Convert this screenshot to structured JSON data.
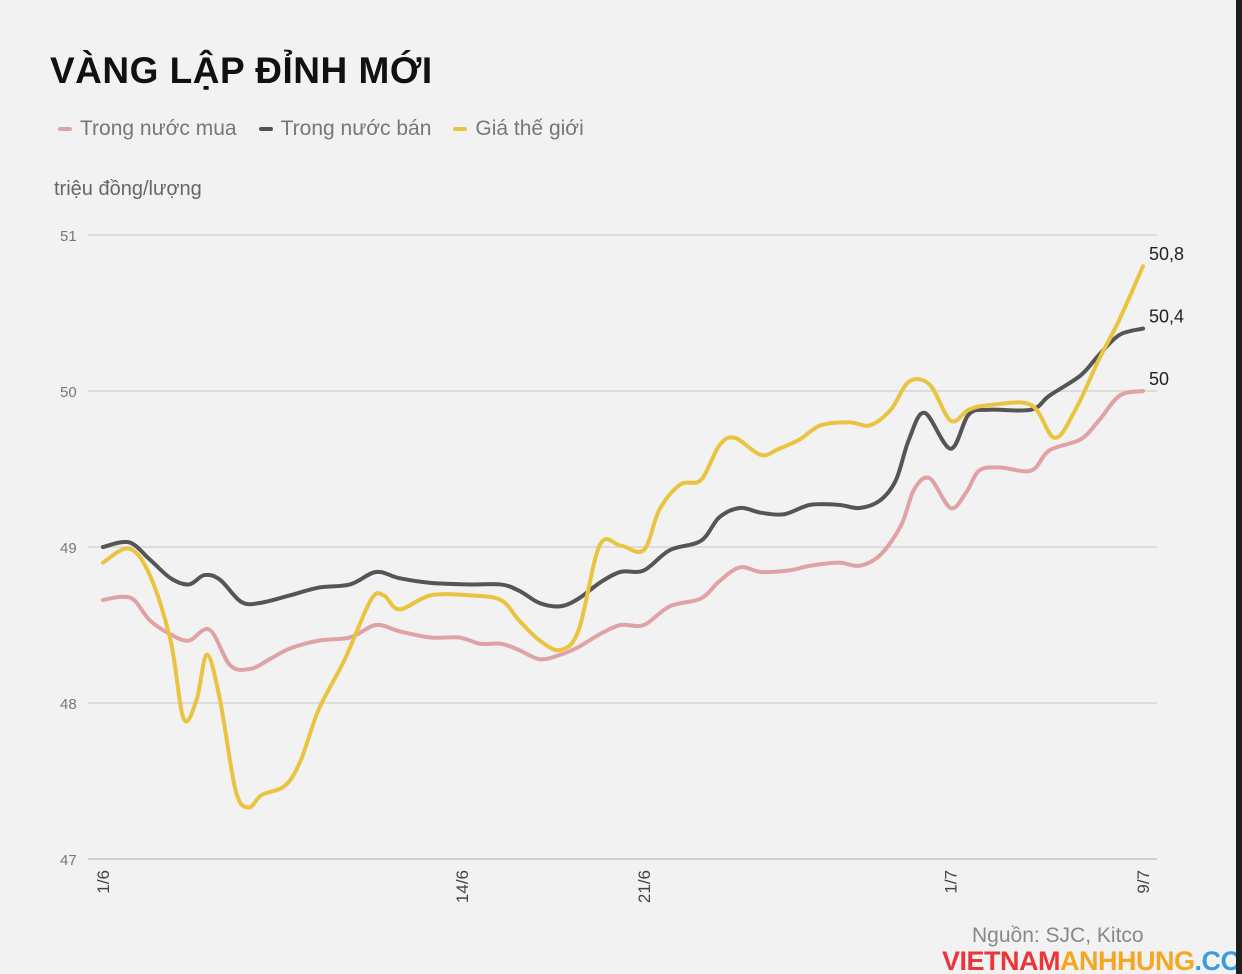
{
  "chart_data": {
    "type": "line",
    "title": "VÀNG LẬP ĐỈNH MỚI",
    "ylabel": "triệu đồng/lượng",
    "xlabel": "",
    "ylim": [
      47,
      51
    ],
    "yticks": [
      47,
      48,
      49,
      50,
      51
    ],
    "xlim": [
      0,
      40
    ],
    "xticks": [
      {
        "x": 0,
        "label": "1/6"
      },
      {
        "x": 13.8,
        "label": "14/6"
      },
      {
        "x": 20.8,
        "label": "21/6"
      },
      {
        "x": 32.6,
        "label": "1/7"
      },
      {
        "x": 40,
        "label": "9/7"
      }
    ],
    "grid": true,
    "legend_position": "top-left",
    "source": "Nguồn: SJC, Kitco",
    "series": [
      {
        "name": "Trong nước mua",
        "color": "#e0a3a5",
        "end_label": "50",
        "points": [
          [
            0,
            48.66
          ],
          [
            0.7,
            48.68
          ],
          [
            1.2,
            48.66
          ],
          [
            1.8,
            48.53
          ],
          [
            2.6,
            48.44
          ],
          [
            3.3,
            48.4
          ],
          [
            4.1,
            48.47
          ],
          [
            4.9,
            48.24
          ],
          [
            5.7,
            48.22
          ],
          [
            6.4,
            48.28
          ],
          [
            7.2,
            48.35
          ],
          [
            8.3,
            48.4
          ],
          [
            9.5,
            48.42
          ],
          [
            10.5,
            48.5
          ],
          [
            11.4,
            48.46
          ],
          [
            12.6,
            48.42
          ],
          [
            13.7,
            48.42
          ],
          [
            14.5,
            48.38
          ],
          [
            15.3,
            48.38
          ],
          [
            16.0,
            48.34
          ],
          [
            16.8,
            48.28
          ],
          [
            17.6,
            48.31
          ],
          [
            18.3,
            48.36
          ],
          [
            19.1,
            48.44
          ],
          [
            19.9,
            48.5
          ],
          [
            20.8,
            48.5
          ],
          [
            21.8,
            48.62
          ],
          [
            23.0,
            48.67
          ],
          [
            23.7,
            48.78
          ],
          [
            24.5,
            48.87
          ],
          [
            25.3,
            48.84
          ],
          [
            26.4,
            48.85
          ],
          [
            27.2,
            48.88
          ],
          [
            28.3,
            48.9
          ],
          [
            29.1,
            48.88
          ],
          [
            29.9,
            48.95
          ],
          [
            30.7,
            49.14
          ],
          [
            31.2,
            49.37
          ],
          [
            31.8,
            49.44
          ],
          [
            32.6,
            49.25
          ],
          [
            33.2,
            49.35
          ],
          [
            33.7,
            49.49
          ],
          [
            34.5,
            49.51
          ],
          [
            35.7,
            49.49
          ],
          [
            36.4,
            49.62
          ],
          [
            37.6,
            49.69
          ],
          [
            38.3,
            49.81
          ],
          [
            39.1,
            49.97
          ],
          [
            40,
            50.0
          ]
        ]
      },
      {
        "name": "Trong nước bán",
        "color": "#555555",
        "end_label": "50,4",
        "points": [
          [
            0,
            49.0
          ],
          [
            1.0,
            49.03
          ],
          [
            1.8,
            48.92
          ],
          [
            2.6,
            48.8
          ],
          [
            3.3,
            48.76
          ],
          [
            3.9,
            48.82
          ],
          [
            4.5,
            48.79
          ],
          [
            5.3,
            48.65
          ],
          [
            6.0,
            48.64
          ],
          [
            7.2,
            48.69
          ],
          [
            8.3,
            48.74
          ],
          [
            9.5,
            48.76
          ],
          [
            10.5,
            48.84
          ],
          [
            11.4,
            48.8
          ],
          [
            12.6,
            48.77
          ],
          [
            14.1,
            48.76
          ],
          [
            15.3,
            48.76
          ],
          [
            16.0,
            48.72
          ],
          [
            16.8,
            48.64
          ],
          [
            17.6,
            48.62
          ],
          [
            18.3,
            48.67
          ],
          [
            19.1,
            48.77
          ],
          [
            19.9,
            48.84
          ],
          [
            20.8,
            48.85
          ],
          [
            21.8,
            48.98
          ],
          [
            23.0,
            49.04
          ],
          [
            23.7,
            49.19
          ],
          [
            24.5,
            49.25
          ],
          [
            25.3,
            49.22
          ],
          [
            26.2,
            49.21
          ],
          [
            27.2,
            49.27
          ],
          [
            28.3,
            49.27
          ],
          [
            29.1,
            49.25
          ],
          [
            29.9,
            49.3
          ],
          [
            30.5,
            49.43
          ],
          [
            31.0,
            49.69
          ],
          [
            31.6,
            49.86
          ],
          [
            32.6,
            49.63
          ],
          [
            33.3,
            49.85
          ],
          [
            34.1,
            49.88
          ],
          [
            35.7,
            49.88
          ],
          [
            36.4,
            49.97
          ],
          [
            37.6,
            50.1
          ],
          [
            38.3,
            50.23
          ],
          [
            39.1,
            50.36
          ],
          [
            40,
            50.4
          ]
        ]
      },
      {
        "name": "Giá thế giới",
        "color": "#e9c440",
        "end_label": "50,8",
        "points": [
          [
            0,
            48.9
          ],
          [
            1.0,
            48.99
          ],
          [
            1.8,
            48.82
          ],
          [
            2.6,
            48.4
          ],
          [
            3.1,
            47.9
          ],
          [
            3.6,
            48.02
          ],
          [
            4.0,
            48.31
          ],
          [
            4.5,
            48.02
          ],
          [
            5.1,
            47.44
          ],
          [
            5.6,
            47.33
          ],
          [
            6.1,
            47.41
          ],
          [
            7.0,
            47.47
          ],
          [
            7.6,
            47.63
          ],
          [
            8.3,
            47.96
          ],
          [
            9.3,
            48.28
          ],
          [
            10.3,
            48.66
          ],
          [
            10.8,
            48.69
          ],
          [
            11.4,
            48.6
          ],
          [
            12.6,
            48.69
          ],
          [
            14.1,
            48.69
          ],
          [
            15.3,
            48.66
          ],
          [
            16.0,
            48.53
          ],
          [
            16.8,
            48.4
          ],
          [
            17.6,
            48.34
          ],
          [
            18.3,
            48.47
          ],
          [
            19.1,
            49.01
          ],
          [
            19.9,
            49.01
          ],
          [
            20.8,
            48.98
          ],
          [
            21.4,
            49.24
          ],
          [
            22.2,
            49.4
          ],
          [
            23.0,
            49.43
          ],
          [
            23.7,
            49.65
          ],
          [
            24.3,
            49.7
          ],
          [
            25.3,
            49.59
          ],
          [
            26.0,
            49.63
          ],
          [
            26.8,
            49.69
          ],
          [
            27.6,
            49.78
          ],
          [
            28.7,
            49.8
          ],
          [
            29.5,
            49.78
          ],
          [
            30.3,
            49.88
          ],
          [
            31.0,
            50.06
          ],
          [
            31.8,
            50.04
          ],
          [
            32.6,
            49.81
          ],
          [
            33.3,
            49.88
          ],
          [
            34.1,
            49.91
          ],
          [
            35.7,
            49.91
          ],
          [
            36.6,
            49.7
          ],
          [
            37.4,
            49.88
          ],
          [
            38.3,
            50.2
          ],
          [
            39.1,
            50.46
          ],
          [
            40,
            50.8
          ]
        ]
      }
    ]
  },
  "watermark": {
    "part1": "VIETNAM",
    "part2": "ANHHUNG",
    "part3": ".COM",
    "color1": "#e8363a",
    "color2": "#f5a623",
    "color3": "#3b9be0"
  }
}
